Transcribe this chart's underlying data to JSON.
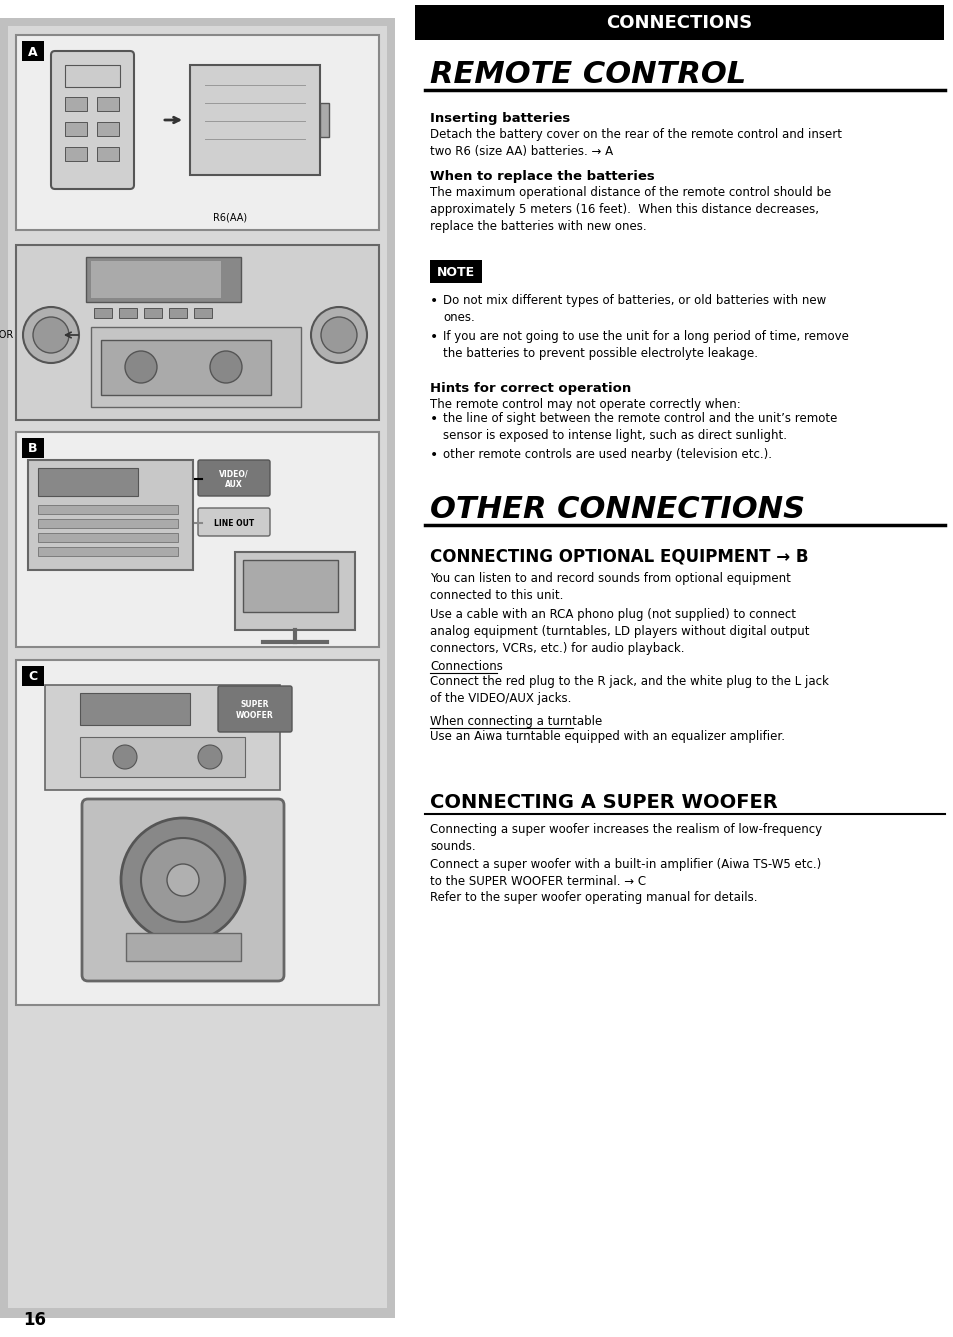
{
  "page_bg": "#ffffff",
  "header_bar_color": "#000000",
  "header_text": "CONNECTIONS",
  "header_text_color": "#ffffff",
  "title1": "REMOTE CONTROL",
  "title2": "OTHER CONNECTIONS",
  "subtitle1": "CONNECTING OPTIONAL EQUIPMENT → B",
  "subtitle2": "CONNECTING A SUPER WOOFER",
  "page_number": "16",
  "inserting_batteries_title": "Inserting batteries",
  "inserting_batteries_text": "Detach the battery cover on the rear of the remote control and insert\ntwo R6 (size AA) batteries. → A",
  "when_replace_title": "When to replace the batteries",
  "when_replace_text": "The maximum operational distance of the remote control should be\napproximately 5 meters (16 feet).  When this distance decreases,\nreplace the batteries with new ones.",
  "note_label": "NOTE",
  "note_bullet1": "Do not mix different types of batteries, or old batteries with new\nones.",
  "note_bullet2": "If you are not going to use the unit for a long period of time, remove\nthe batteries to prevent possible electrolyte leakage.",
  "hints_title": "Hints for correct operation",
  "hints_intro": "The remote control may not operate correctly when:",
  "hints_bullet1": "the line of sight between the remote control and the unit’s remote\nsensor is exposed to intense light, such as direct sunlight.",
  "hints_bullet2": "other remote controls are used nearby (television etc.).",
  "opt_equip_text1": "You can listen to and record sounds from optional equipment\nconnected to this unit.",
  "opt_equip_text2": "Use a cable with an RCA phono plug (not supplied) to connect\nanalog equipment (turntables, LD players without digital output\nconnectors, VCRs, etc.) for audio playback.",
  "connections_label": "Connections",
  "connections_text": "Connect the red plug to the R jack, and the white plug to the L jack\nof the VIDEO/AUX jacks.",
  "turntable_label": "When connecting a turntable",
  "turntable_text": "Use an Aiwa turntable equipped with an equalizer amplifier.",
  "superwoofer_text1": "Connecting a super woofer increases the realism of low-frequency\nsounds.",
  "superwoofer_text2": "Connect a super woofer with a built-in amplifier (Aiwa TS-W5 etc.)\nto the SUPER WOOFER terminal. → C",
  "superwoofer_text3": "Refer to the super woofer operating manual for details.",
  "sensor_label": "SENSOR"
}
